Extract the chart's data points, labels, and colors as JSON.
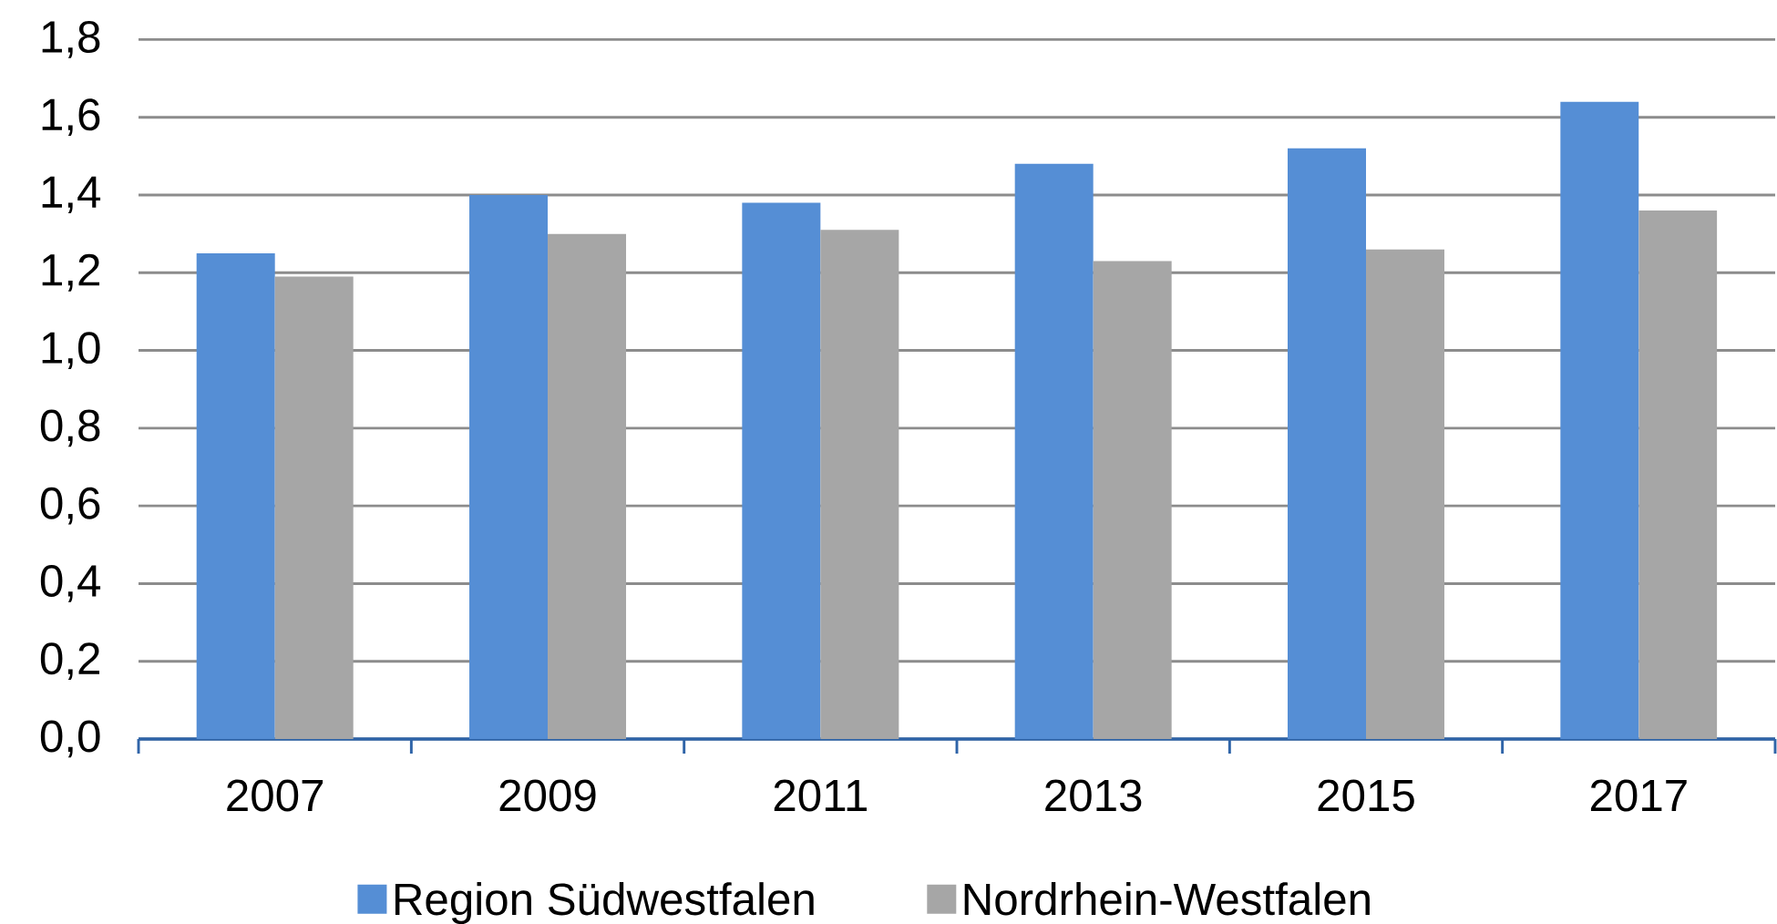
{
  "chart_data": {
    "type": "bar",
    "categories": [
      "2007",
      "2009",
      "2011",
      "2013",
      "2015",
      "2017"
    ],
    "series": [
      {
        "name": "Region Südwestfalen",
        "color": "#558ed5",
        "values": [
          1.25,
          1.4,
          1.38,
          1.48,
          1.52,
          1.64
        ]
      },
      {
        "name": "Nordrhein-Westfalen",
        "color": "#a6a6a6",
        "values": [
          1.19,
          1.3,
          1.31,
          1.23,
          1.26,
          1.36
        ]
      }
    ],
    "ylim": [
      0,
      1.8
    ],
    "yticks": [
      {
        "value": 0,
        "label": "0,0"
      },
      {
        "value": 0.2,
        "label": "0,2"
      },
      {
        "value": 0.4,
        "label": "0,4"
      },
      {
        "value": 0.6,
        "label": "0,6"
      },
      {
        "value": 0.8,
        "label": "0,8"
      },
      {
        "value": 1.0,
        "label": "1,0"
      },
      {
        "value": 1.2,
        "label": "1,2"
      },
      {
        "value": 1.4,
        "label": "1,4"
      },
      {
        "value": 1.6,
        "label": "1,6"
      },
      {
        "value": 1.8,
        "label": "1,8"
      }
    ],
    "grid": "y",
    "legend": "bottom"
  }
}
